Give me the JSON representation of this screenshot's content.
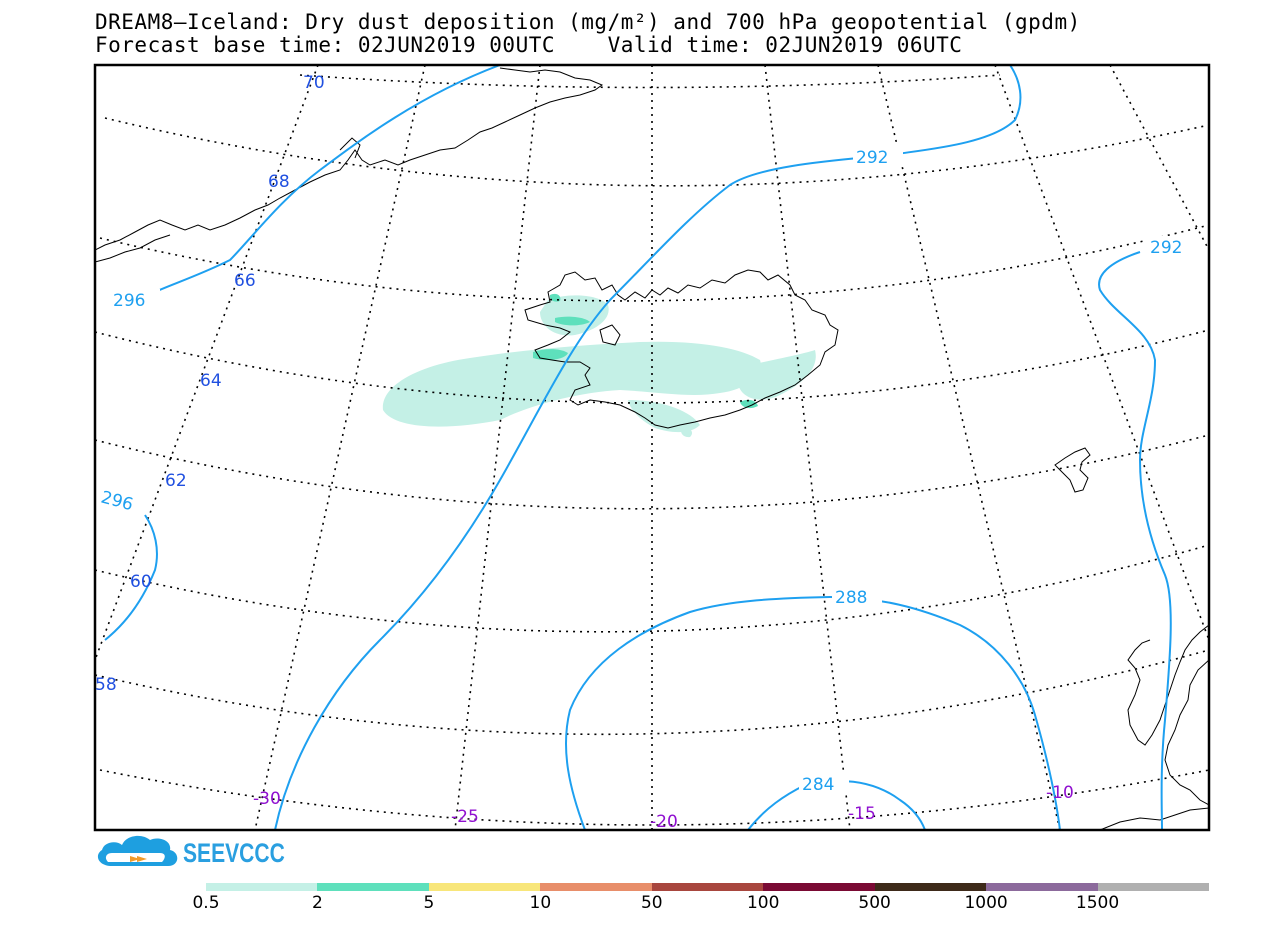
{
  "title": {
    "line1": "DREAM8—Iceland: Dry dust deposition (mg/m²) and 700 hPa geopotential (gpdm)",
    "line2": "Forecast base time: 02JUN2019 00UTC    Valid time: 02JUN2019 06UTC"
  },
  "brand": {
    "name": "SEEVCCC",
    "icon": "cloud-logo-icon",
    "color": "#2a9fe0"
  },
  "latitude_labels": [
    "70",
    "68",
    "66",
    "64",
    "62",
    "60",
    "58"
  ],
  "longitude_labels": [
    "-30",
    "-25",
    "-20",
    "-15",
    "-10"
  ],
  "contour_labels": [
    "292",
    "292",
    "296",
    "296",
    "288",
    "284"
  ],
  "colors": {
    "contour": "#1ea0f0",
    "lat_label": "#2050e0",
    "lon_label": "#9010d0",
    "dust_light": "#c4f0e6"
  },
  "colorbar": {
    "labels": [
      "0.5",
      "2",
      "5",
      "10",
      "50",
      "100",
      "500",
      "1000",
      "1500"
    ],
    "colors": [
      "#c4f0e6",
      "#5ee0bc",
      "#f8e67a",
      "#e88e6a",
      "#a8463e",
      "#7a0a34",
      "#3e2a1a",
      "#8c6a9c",
      "#b0b0b0"
    ]
  }
}
